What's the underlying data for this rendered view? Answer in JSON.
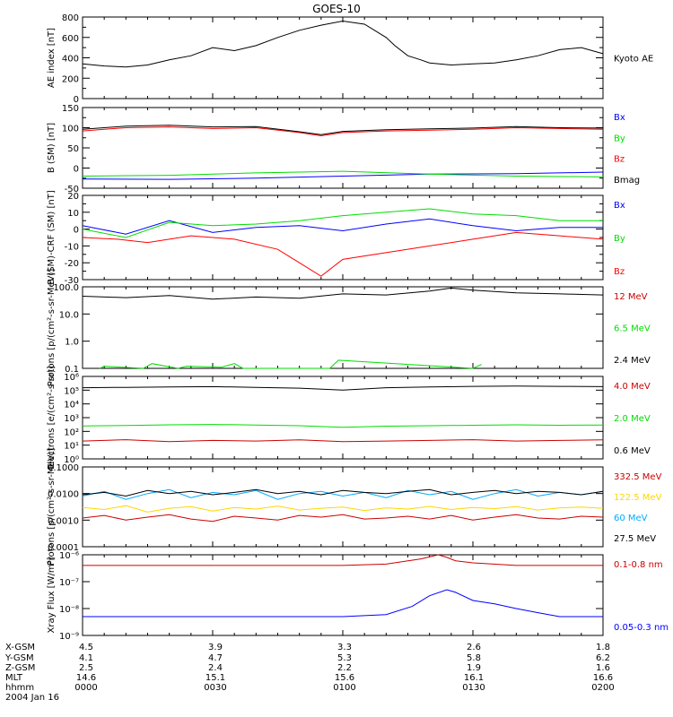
{
  "title": "GOES-10",
  "date_label": "2004 Jan 16",
  "row_labels": [
    "X-GSM",
    "Y-GSM",
    "Z-GSM",
    "MLT",
    "hhmm"
  ],
  "bottom_axis": {
    "ticks": [
      {
        "values": [
          "4.5",
          "4.1",
          "2.5",
          "14.6",
          "0000"
        ]
      },
      {
        "values": [
          "3.9",
          "4.7",
          "2.4",
          "15.1",
          "0030"
        ]
      },
      {
        "values": [
          "3.3",
          "5.3",
          "2.2",
          "15.6",
          "0100"
        ]
      },
      {
        "values": [
          "2.6",
          "5.8",
          "1.9",
          "16.1",
          "0130"
        ]
      },
      {
        "values": [
          "1.8",
          "6.2",
          "1.6",
          "16.6",
          "0200"
        ]
      }
    ]
  },
  "chart_data": [
    {
      "type": "line",
      "ylabel": "AE index [nT]",
      "yscale": "linear",
      "ylim": [
        0,
        800
      ],
      "yticks": [
        {
          "v": 0,
          "label": "0"
        },
        {
          "v": 200,
          "label": "200"
        },
        {
          "v": 400,
          "label": "400"
        },
        {
          "v": 600,
          "label": "600"
        },
        {
          "v": 800,
          "label": "800"
        }
      ],
      "xlim": [
        0,
        120
      ],
      "series": [
        {
          "name": "Kyoto AE",
          "color": "#000000",
          "x": [
            0,
            5,
            10,
            15,
            20,
            25,
            30,
            35,
            40,
            45,
            50,
            55,
            60,
            65,
            70,
            72,
            75,
            78,
            80,
            85,
            90,
            95,
            100,
            105,
            110,
            115,
            120
          ],
          "y": [
            340,
            320,
            310,
            330,
            380,
            420,
            500,
            470,
            520,
            600,
            670,
            720,
            760,
            730,
            600,
            520,
            420,
            380,
            350,
            330,
            340,
            350,
            380,
            420,
            480,
            500,
            440
          ]
        }
      ]
    },
    {
      "type": "line",
      "ylabel": "B (SM) [nT]",
      "yscale": "linear",
      "ylim": [
        -50,
        150
      ],
      "yticks": [
        {
          "v": -50,
          "label": "-50"
        },
        {
          "v": 0,
          "label": "0"
        },
        {
          "v": 50,
          "label": "50"
        },
        {
          "v": 100,
          "label": "100"
        },
        {
          "v": 150,
          "label": "150"
        }
      ],
      "xlim": [
        0,
        120
      ],
      "series": [
        {
          "name": "Bx",
          "color": "#0000ff",
          "x": [
            0,
            20,
            40,
            60,
            80,
            100,
            120
          ],
          "y": [
            -27,
            -28,
            -25,
            -20,
            -15,
            -14,
            -10
          ]
        },
        {
          "name": "By",
          "color": "#00dd00",
          "x": [
            0,
            20,
            40,
            60,
            80,
            100,
            120
          ],
          "y": [
            -20,
            -18,
            -12,
            -8,
            -15,
            -20,
            -22
          ]
        },
        {
          "name": "Bz",
          "color": "#ff0000",
          "x": [
            0,
            10,
            20,
            30,
            40,
            50,
            55,
            60,
            70,
            80,
            90,
            100,
            110,
            120
          ],
          "y": [
            92,
            100,
            102,
            98,
            100,
            88,
            80,
            88,
            92,
            94,
            96,
            100,
            98,
            96
          ]
        },
        {
          "name": "Bmag",
          "color": "#000000",
          "x": [
            0,
            10,
            20,
            30,
            40,
            50,
            55,
            60,
            70,
            80,
            90,
            100,
            110,
            120
          ],
          "y": [
            96,
            104,
            106,
            102,
            103,
            90,
            83,
            91,
            95,
            97,
            99,
            103,
            100,
            99
          ]
        }
      ]
    },
    {
      "type": "line",
      "ylabel": "B (SM)-CRF (SM) [nT]",
      "yscale": "linear",
      "ylim": [
        -30,
        20
      ],
      "yticks": [
        {
          "v": -30,
          "label": "-30"
        },
        {
          "v": -20,
          "label": "-20"
        },
        {
          "v": -10,
          "label": "-10"
        },
        {
          "v": 0,
          "label": "0"
        },
        {
          "v": 10,
          "label": "10"
        },
        {
          "v": 20,
          "label": "20"
        }
      ],
      "xlim": [
        0,
        120
      ],
      "series": [
        {
          "name": "Bx",
          "color": "#0000ff",
          "x": [
            0,
            10,
            20,
            30,
            40,
            50,
            60,
            70,
            80,
            90,
            100,
            110,
            120
          ],
          "y": [
            2,
            -3,
            5,
            -2,
            1,
            2,
            -1,
            3,
            6,
            2,
            -1,
            1,
            1
          ]
        },
        {
          "name": "By",
          "color": "#00dd00",
          "x": [
            0,
            10,
            20,
            30,
            40,
            50,
            60,
            70,
            80,
            90,
            100,
            110,
            120
          ],
          "y": [
            0,
            -5,
            4,
            2,
            3,
            5,
            8,
            10,
            12,
            9,
            8,
            5,
            5
          ]
        },
        {
          "name": "Bz",
          "color": "#ff0000",
          "x": [
            0,
            8,
            15,
            25,
            35,
            45,
            50,
            55,
            60,
            70,
            80,
            90,
            100,
            110,
            120
          ],
          "y": [
            -5,
            -6,
            -8,
            -4,
            -6,
            -12,
            -20,
            -28,
            -18,
            -14,
            -10,
            -6,
            -2,
            -4,
            -6
          ]
        }
      ]
    },
    {
      "type": "line",
      "ylabel": "Protons [p/(cm²-s-sr-MeV)]",
      "yscale": "log",
      "ylim": [
        0.1,
        100
      ],
      "yticks": [
        {
          "v": 0.1,
          "label": "0.1"
        },
        {
          "v": 1,
          "label": "1.0"
        },
        {
          "v": 10,
          "label": "10.0"
        },
        {
          "v": 100,
          "label": "100.0"
        }
      ],
      "xlim": [
        0,
        120
      ],
      "series": [
        {
          "name": "12 MeV",
          "color": "#cc0000",
          "x": [],
          "y": []
        },
        {
          "name": "6.5 MeV",
          "color": "#00dd00",
          "x": [
            4,
            5,
            14,
            16,
            22,
            24,
            32,
            35,
            37,
            57,
            59,
            90,
            92
          ],
          "y": [
            0.1,
            0.12,
            0.1,
            0.15,
            0.1,
            0.12,
            0.11,
            0.15,
            0.1,
            0.1,
            0.2,
            0.1,
            0.14
          ]
        },
        {
          "name": "2.4 MeV",
          "color": "#000000",
          "x": [
            0,
            10,
            20,
            30,
            40,
            50,
            60,
            70,
            80,
            85,
            90,
            100,
            110,
            120
          ],
          "y": [
            45,
            40,
            48,
            35,
            42,
            38,
            55,
            50,
            70,
            90,
            75,
            60,
            55,
            50
          ]
        }
      ]
    },
    {
      "type": "line",
      "ylabel": "Electrons [e/(cm²-s-sr)]",
      "yscale": "log",
      "ylim": [
        1,
        1000000
      ],
      "yticks": [
        {
          "v": 1,
          "label": "10⁰"
        },
        {
          "v": 10,
          "label": "10¹"
        },
        {
          "v": 100,
          "label": "10²"
        },
        {
          "v": 1000,
          "label": "10³"
        },
        {
          "v": 10000,
          "label": "10⁴"
        },
        {
          "v": 100000,
          "label": "10⁵"
        },
        {
          "v": 1000000,
          "label": "10⁶"
        }
      ],
      "xlim": [
        0,
        120
      ],
      "series": [
        {
          "name": "4.0 MeV",
          "color": "#cc0000",
          "x": [
            0,
            10,
            20,
            30,
            40,
            50,
            60,
            70,
            80,
            90,
            100,
            110,
            120
          ],
          "y": [
            20,
            25,
            18,
            22,
            20,
            24,
            18,
            20,
            22,
            25,
            20,
            22,
            24
          ]
        },
        {
          "name": "2.0 MeV",
          "color": "#00dd00",
          "x": [
            0,
            10,
            20,
            30,
            40,
            50,
            60,
            70,
            80,
            90,
            100,
            110,
            120
          ],
          "y": [
            250,
            270,
            300,
            320,
            290,
            260,
            200,
            240,
            260,
            280,
            300,
            280,
            290
          ]
        },
        {
          "name": "0.6 MeV",
          "color": "#000000",
          "x": [
            0,
            10,
            20,
            30,
            40,
            50,
            60,
            70,
            80,
            90,
            100,
            110,
            120
          ],
          "y": [
            150000,
            160000,
            170000,
            180000,
            160000,
            140000,
            100000,
            150000,
            170000,
            190000,
            200000,
            190000,
            180000
          ]
        }
      ]
    },
    {
      "type": "line",
      "ylabel": "Protons [p/(cm²-s-sr-MeV)]",
      "yscale": "log",
      "ylim": [
        0.0001,
        0.1
      ],
      "yticks": [
        {
          "v": 0.0001,
          "label": "0.0001"
        },
        {
          "v": 0.001,
          "label": "0.0010"
        },
        {
          "v": 0.01,
          "label": "0.0100"
        },
        {
          "v": 0.1,
          "label": "0.1000"
        }
      ],
      "xlim": [
        0,
        120
      ],
      "series": [
        {
          "name": "332.5 MeV",
          "color": "#cc0000",
          "x": [
            0,
            5,
            10,
            15,
            20,
            25,
            30,
            35,
            40,
            45,
            50,
            55,
            60,
            65,
            70,
            75,
            80,
            85,
            90,
            95,
            100,
            105,
            110,
            115,
            120
          ],
          "y": [
            0.0012,
            0.0015,
            0.001,
            0.0013,
            0.0016,
            0.0011,
            0.0009,
            0.0014,
            0.0012,
            0.001,
            0.0015,
            0.0013,
            0.0016,
            0.0011,
            0.0012,
            0.0014,
            0.0011,
            0.0015,
            0.001,
            0.0013,
            0.0016,
            0.0012,
            0.0011,
            0.0014,
            0.0013
          ]
        },
        {
          "name": "122.5 MeV",
          "color": "#ffd700",
          "x": [
            0,
            5,
            10,
            15,
            20,
            25,
            30,
            35,
            40,
            45,
            50,
            55,
            60,
            65,
            70,
            75,
            80,
            85,
            90,
            95,
            100,
            105,
            110,
            115,
            120
          ],
          "y": [
            0.003,
            0.0025,
            0.0035,
            0.002,
            0.0028,
            0.0032,
            0.0022,
            0.003,
            0.0026,
            0.0034,
            0.0024,
            0.0028,
            0.0031,
            0.0023,
            0.0029,
            0.0026,
            0.0033,
            0.0025,
            0.003,
            0.0027,
            0.0032,
            0.0024,
            0.0029,
            0.0031,
            0.0028
          ]
        },
        {
          "name": "60 MeV",
          "color": "#00aaff",
          "x": [
            0,
            5,
            10,
            15,
            20,
            25,
            30,
            35,
            40,
            45,
            50,
            55,
            60,
            65,
            70,
            75,
            80,
            85,
            90,
            95,
            100,
            105,
            110,
            115,
            120
          ],
          "y": [
            0.008,
            0.012,
            0.006,
            0.01,
            0.014,
            0.007,
            0.011,
            0.009,
            0.013,
            0.006,
            0.01,
            0.012,
            0.008,
            0.011,
            0.007,
            0.013,
            0.009,
            0.012,
            0.006,
            0.01,
            0.014,
            0.008,
            0.011,
            0.009,
            0.012
          ]
        },
        {
          "name": "27.5 MeV",
          "color": "#000000",
          "x": [
            0,
            5,
            10,
            15,
            20,
            25,
            30,
            35,
            40,
            45,
            50,
            55,
            60,
            65,
            70,
            75,
            80,
            85,
            90,
            95,
            100,
            105,
            110,
            115,
            120
          ],
          "y": [
            0.009,
            0.011,
            0.008,
            0.013,
            0.01,
            0.012,
            0.009,
            0.011,
            0.014,
            0.01,
            0.012,
            0.009,
            0.013,
            0.011,
            0.01,
            0.012,
            0.014,
            0.009,
            0.011,
            0.013,
            0.01,
            0.012,
            0.011,
            0.009,
            0.012
          ]
        }
      ]
    },
    {
      "type": "line",
      "ylabel": "Xray Flux [W/m²]",
      "yscale": "log",
      "ylim": [
        1e-09,
        1e-06
      ],
      "yticks": [
        {
          "v": 1e-09,
          "label": "10⁻⁹"
        },
        {
          "v": 1e-08,
          "label": "10⁻⁸"
        },
        {
          "v": 1e-07,
          "label": "10⁻⁷"
        },
        {
          "v": 1e-06,
          "label": "10⁻⁶"
        }
      ],
      "xlim": [
        0,
        120
      ],
      "series": [
        {
          "name": "0.1-0.8 nm",
          "color": "#cc0000",
          "x": [
            0,
            10,
            20,
            30,
            40,
            50,
            60,
            70,
            78,
            82,
            84,
            86,
            90,
            100,
            110,
            120
          ],
          "y": [
            4e-07,
            4e-07,
            4e-07,
            4e-07,
            4e-07,
            4e-07,
            4e-07,
            4.5e-07,
            7e-07,
            1e-06,
            8e-07,
            6e-07,
            5e-07,
            4e-07,
            4e-07,
            4e-07
          ]
        },
        {
          "name": "0.05-0.3 nm",
          "color": "#0000ff",
          "x": [
            0,
            10,
            20,
            30,
            40,
            50,
            60,
            70,
            76,
            80,
            84,
            86,
            90,
            95,
            100,
            105,
            110,
            120
          ],
          "y": [
            5e-09,
            5e-09,
            5e-09,
            5e-09,
            5e-09,
            5e-09,
            5e-09,
            6e-09,
            1.2e-08,
            3e-08,
            5e-08,
            4e-08,
            2e-08,
            1.5e-08,
            1e-08,
            7e-09,
            5e-09,
            5e-09
          ]
        }
      ]
    }
  ]
}
